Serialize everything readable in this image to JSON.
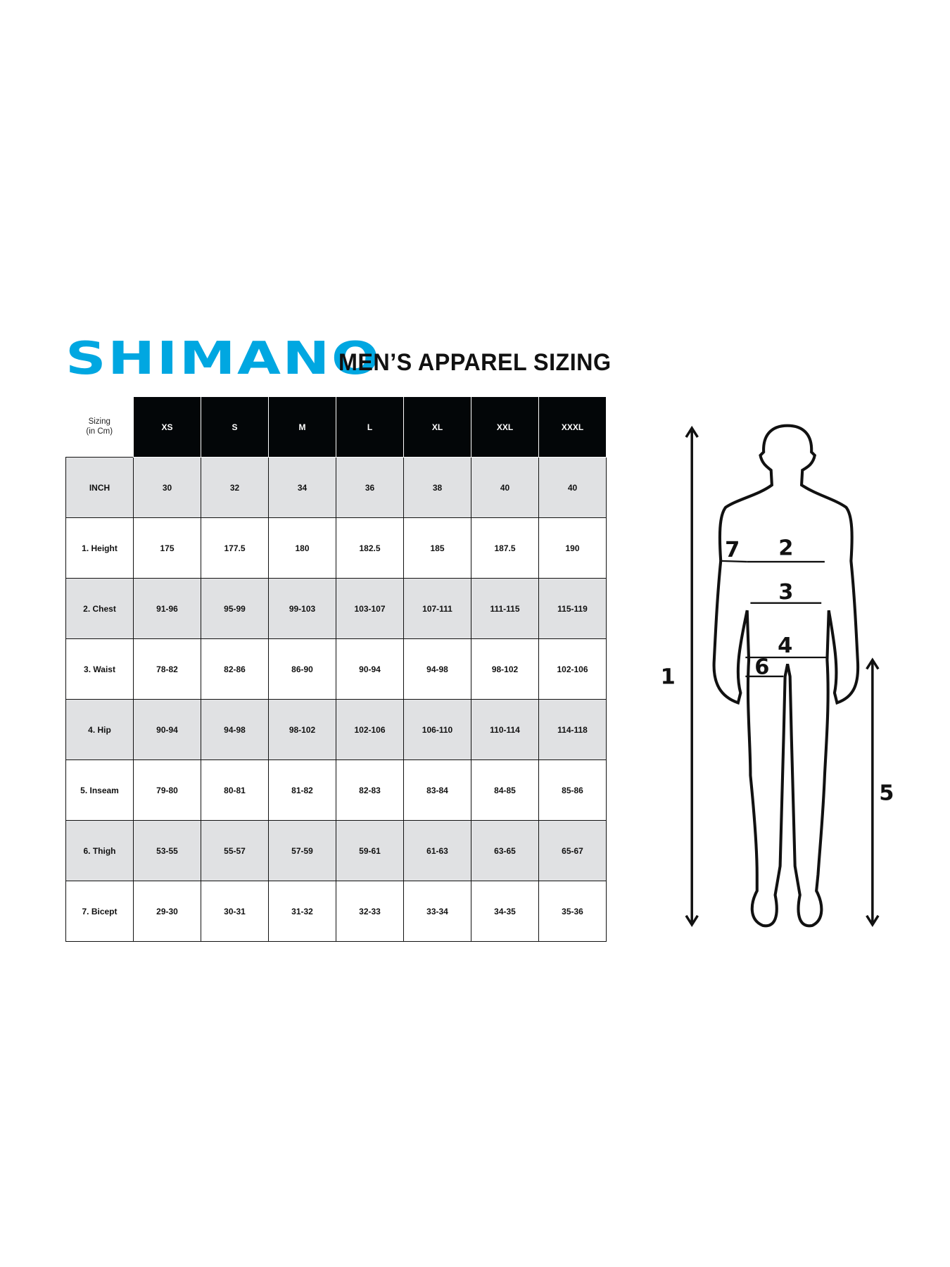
{
  "brand": {
    "logo_text": "SHIMANO",
    "color": "#00a7e1"
  },
  "title": "MEN’S APPAREL SIZING",
  "table": {
    "corner_label_line1": "Sizing",
    "corner_label_line2": "(in Cm)",
    "sizes": [
      "XS",
      "S",
      "M",
      "L",
      "XL",
      "XXL",
      "XXXL"
    ],
    "rows": [
      {
        "label": "INCH",
        "values": [
          "30",
          "32",
          "34",
          "36",
          "38",
          "40",
          "40"
        ]
      },
      {
        "label": "1. Height",
        "values": [
          "175",
          "177.5",
          "180",
          "182.5",
          "185",
          "187.5",
          "190"
        ]
      },
      {
        "label": "2. Chest",
        "values": [
          "91-96",
          "95-99",
          "99-103",
          "103-107",
          "107-111",
          "111-115",
          "115-119"
        ]
      },
      {
        "label": "3. Waist",
        "values": [
          "78-82",
          "82-86",
          "86-90",
          "90-94",
          "94-98",
          "98-102",
          "102-106"
        ]
      },
      {
        "label": "4. Hip",
        "values": [
          "90-94",
          "94-98",
          "98-102",
          "102-106",
          "106-110",
          "110-114",
          "114-118"
        ]
      },
      {
        "label": "5. Inseam",
        "values": [
          "79-80",
          "80-81",
          "81-82",
          "82-83",
          "83-84",
          "84-85",
          "85-86"
        ]
      },
      {
        "label": "6. Thigh",
        "values": [
          "53-55",
          "55-57",
          "57-59",
          "59-61",
          "61-63",
          "63-65",
          "65-67"
        ]
      },
      {
        "label": "7. Bicept",
        "values": [
          "29-30",
          "30-31",
          "31-32",
          "32-33",
          "33-34",
          "34-35",
          "35-36"
        ]
      }
    ],
    "header_color": "#030608",
    "alt_row_color": "#e0e1e3"
  },
  "figure": {
    "labels": {
      "height": "1",
      "chest": "2",
      "waist": "3",
      "hip": "4",
      "inseam": "5",
      "thigh": "6",
      "bicep": "7"
    }
  }
}
